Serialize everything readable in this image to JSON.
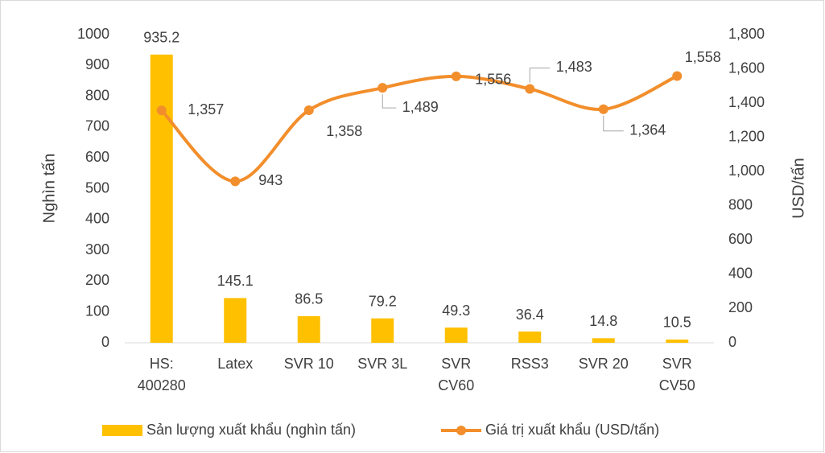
{
  "chart_data": {
    "type": "bar_line",
    "categories": [
      [
        "HS:",
        "400280"
      ],
      [
        "Latex"
      ],
      [
        "SVR 10"
      ],
      [
        "SVR 3L"
      ],
      [
        "SVR",
        "CV60"
      ],
      [
        "RSS3"
      ],
      [
        "SVR 20"
      ],
      [
        "SVR",
        "CV50"
      ]
    ],
    "y_label": "Nghìn tấn",
    "y2_label": "USD/tấn",
    "ylim": [
      0,
      1000
    ],
    "yticks": [
      0,
      100,
      200,
      300,
      400,
      500,
      600,
      700,
      800,
      900,
      1000
    ],
    "y2lim": [
      0,
      1800
    ],
    "y2ticks": [
      0,
      200,
      400,
      600,
      800,
      {
        "value": 1000,
        "label": "1,000"
      },
      {
        "value": 1200,
        "label": "1,200"
      },
      {
        "value": 1400,
        "label": "1,400"
      },
      {
        "value": 1600,
        "label": "1,600"
      },
      {
        "value": 1800,
        "label": "1,800"
      }
    ],
    "legend": "bottom",
    "series": [
      {
        "name": "Sản lượng xuất khẩu (nghìn tấn)",
        "type": "bar",
        "color": "#FFC000",
        "values": [
          935.2,
          145.1,
          86.5,
          79.2,
          49.3,
          36.4,
          14.8,
          10.5
        ]
      },
      {
        "name": "Giá trị xuất khẩu (USD/tấn)",
        "type": "line",
        "axis": "y2",
        "color": "#F28E2B",
        "values": [
          1357,
          943,
          1358,
          1489,
          1556,
          1483,
          1364,
          1558
        ],
        "value_labels": [
          "1,357",
          "943",
          "1,358",
          "1,489",
          "1,556",
          "1,483",
          "1,364",
          "1,558"
        ]
      }
    ]
  }
}
